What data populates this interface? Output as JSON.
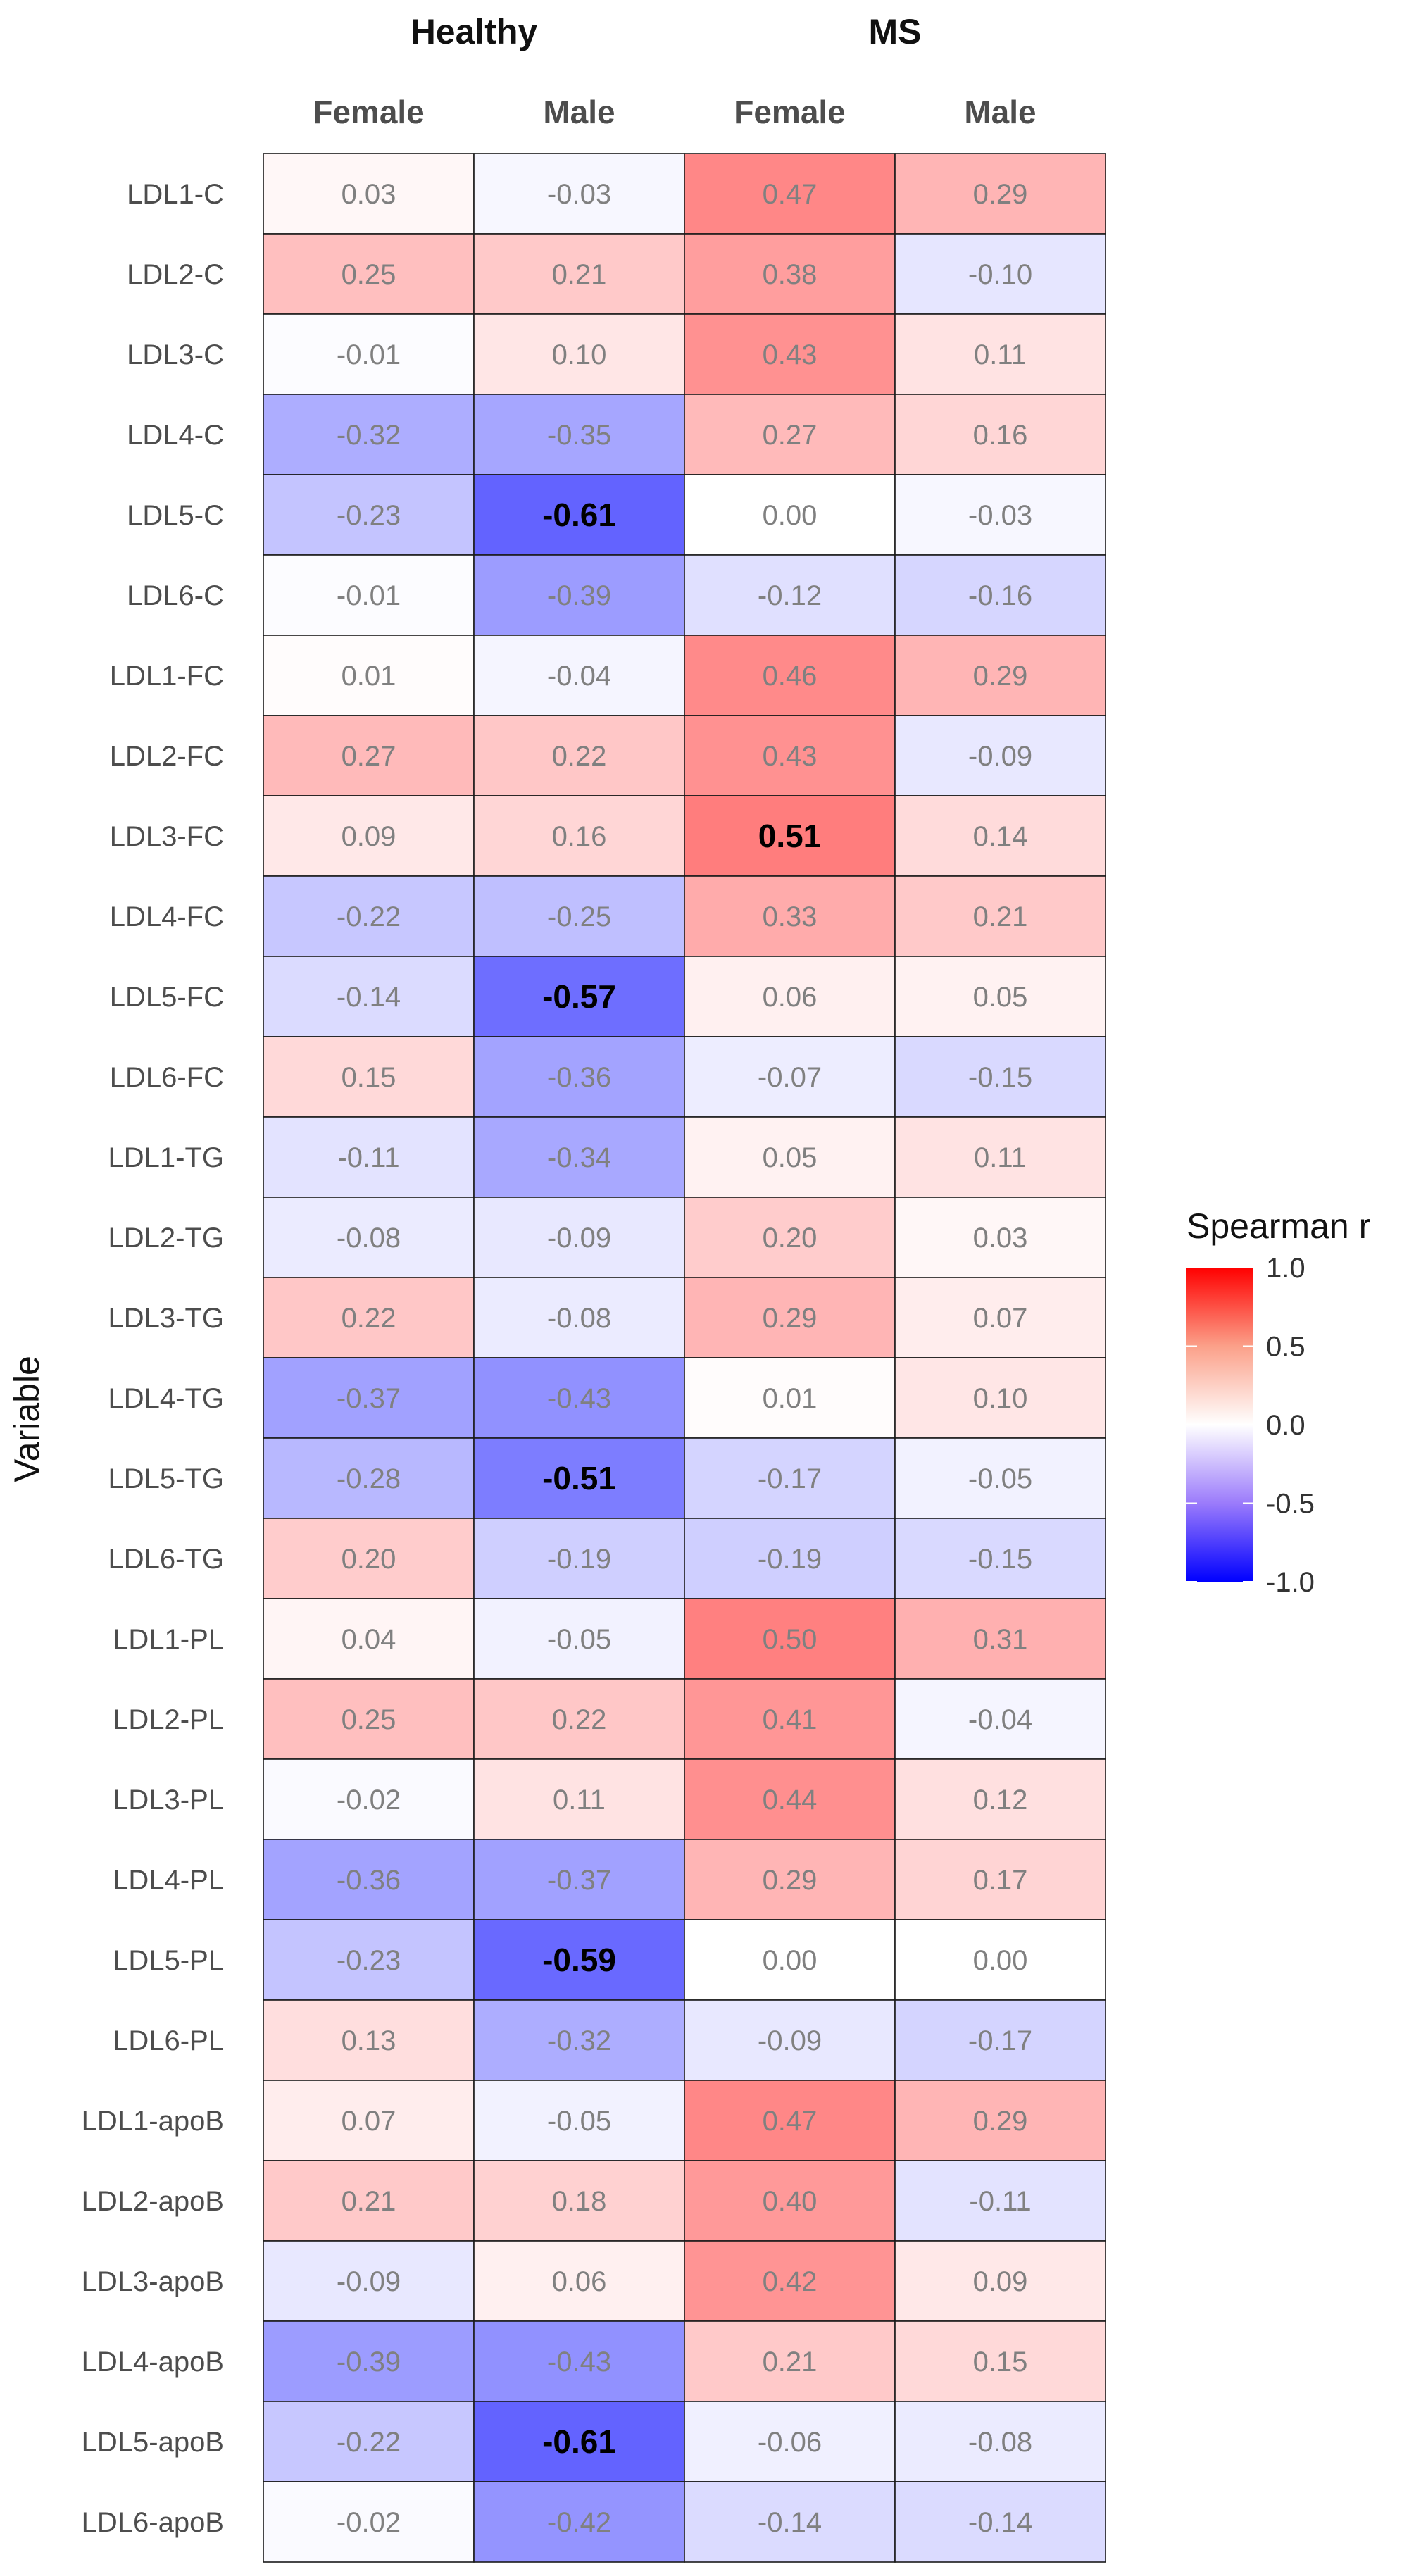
{
  "chart_data": {
    "type": "heatmap",
    "ylabel": "Variable",
    "groups": [
      {
        "name": "Healthy",
        "columns": [
          "Female",
          "Male"
        ]
      },
      {
        "name": "MS",
        "columns": [
          "Female",
          "Male"
        ]
      }
    ],
    "rows": [
      "LDL1-C",
      "LDL2-C",
      "LDL3-C",
      "LDL4-C",
      "LDL5-C",
      "LDL6-C",
      "LDL1-FC",
      "LDL2-FC",
      "LDL3-FC",
      "LDL4-FC",
      "LDL5-FC",
      "LDL6-FC",
      "LDL1-TG",
      "LDL2-TG",
      "LDL3-TG",
      "LDL4-TG",
      "LDL5-TG",
      "LDL6-TG",
      "LDL1-PL",
      "LDL2-PL",
      "LDL3-PL",
      "LDL4-PL",
      "LDL5-PL",
      "LDL6-PL",
      "LDL1-apoB",
      "LDL2-apoB",
      "LDL3-apoB",
      "LDL4-apoB",
      "LDL5-apoB",
      "LDL6-apoB"
    ],
    "values": [
      [
        0.03,
        -0.03,
        0.47,
        0.29
      ],
      [
        0.25,
        0.21,
        0.38,
        -0.1
      ],
      [
        -0.01,
        0.1,
        0.43,
        0.11
      ],
      [
        -0.32,
        -0.35,
        0.27,
        0.16
      ],
      [
        -0.23,
        -0.61,
        0.0,
        -0.03
      ],
      [
        -0.01,
        -0.39,
        -0.12,
        -0.16
      ],
      [
        0.01,
        -0.04,
        0.46,
        0.29
      ],
      [
        0.27,
        0.22,
        0.43,
        -0.09
      ],
      [
        0.09,
        0.16,
        0.51,
        0.14
      ],
      [
        -0.22,
        -0.25,
        0.33,
        0.21
      ],
      [
        -0.14,
        -0.57,
        0.06,
        0.05
      ],
      [
        0.15,
        -0.36,
        -0.07,
        -0.15
      ],
      [
        -0.11,
        -0.34,
        0.05,
        0.11
      ],
      [
        -0.08,
        -0.09,
        0.2,
        0.03
      ],
      [
        0.22,
        -0.08,
        0.29,
        0.07
      ],
      [
        -0.37,
        -0.43,
        0.01,
        0.1
      ],
      [
        -0.28,
        -0.51,
        -0.17,
        -0.05
      ],
      [
        0.2,
        -0.19,
        -0.19,
        -0.15
      ],
      [
        0.04,
        -0.05,
        0.5,
        0.31
      ],
      [
        0.25,
        0.22,
        0.41,
        -0.04
      ],
      [
        -0.02,
        0.11,
        0.44,
        0.12
      ],
      [
        -0.36,
        -0.37,
        0.29,
        0.17
      ],
      [
        -0.23,
        -0.59,
        0.0,
        0.0
      ],
      [
        0.13,
        -0.32,
        -0.09,
        -0.17
      ],
      [
        0.07,
        -0.05,
        0.47,
        0.29
      ],
      [
        0.21,
        0.18,
        0.4,
        -0.11
      ],
      [
        -0.09,
        0.06,
        0.42,
        0.09
      ],
      [
        -0.39,
        -0.43,
        0.21,
        0.15
      ],
      [
        -0.22,
        -0.61,
        -0.06,
        -0.08
      ],
      [
        -0.02,
        -0.42,
        -0.14,
        -0.14
      ]
    ],
    "bold_cells": [
      [
        4,
        1
      ],
      [
        8,
        2
      ],
      [
        10,
        1
      ],
      [
        16,
        1
      ],
      [
        22,
        1
      ],
      [
        28,
        1
      ]
    ],
    "color_scale": {
      "title": "Spearman r",
      "range": [
        -1.0,
        1.0
      ],
      "low_color": "#0000ff",
      "mid_color": "#ffffff",
      "high_color": "#ff0000",
      "ticks": [
        "1.0",
        "0.5",
        "0.0",
        "-0.5",
        "-1.0"
      ],
      "tick_values": [
        1.0,
        0.5,
        0.0,
        -0.5,
        -1.0
      ]
    }
  }
}
